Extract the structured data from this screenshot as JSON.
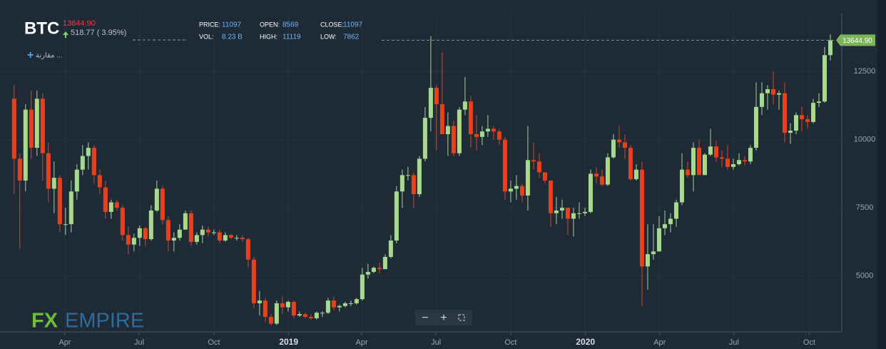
{
  "header": {
    "symbol": "BTC",
    "price": "13644.90",
    "change": "518.77 ( 3.95%)",
    "compare": "مقارنة ...",
    "stats": [
      {
        "label": "PRICE:",
        "value": "11097"
      },
      {
        "label": "VOL:",
        "value": "8.23 B"
      },
      {
        "label": "OPEN:",
        "value": "8569"
      },
      {
        "label": "HIGH:",
        "value": "11119"
      },
      {
        "label": "CLOSE:",
        "value": "11097"
      },
      {
        "label": "LOW:",
        "value": "7862"
      }
    ]
  },
  "footer": {
    "logo_fx": "FX",
    "logo_empire": "EMPIRE"
  },
  "chart_data": {
    "type": "candlestick",
    "up_color": "#a6d98a",
    "down_color": "#e8401c",
    "last_price_label": "13644.90",
    "last_price_color": "#7cb45a",
    "ylim": [
      2950,
      14650
    ],
    "yticks": [
      5000,
      7500,
      10000,
      12500
    ],
    "xlim": [
      -0.6,
      143.5
    ],
    "xticks": [
      {
        "value": 8.9,
        "label": "Apr"
      },
      {
        "value": 21.9,
        "label": "Jul"
      },
      {
        "value": 35,
        "label": "Oct"
      },
      {
        "value": 48.1,
        "label": "2019"
      },
      {
        "value": 60.9,
        "label": "Apr"
      },
      {
        "value": 73.9,
        "label": "Jul"
      },
      {
        "value": 87,
        "label": "Oct"
      },
      {
        "value": 100.1,
        "label": "2020"
      },
      {
        "value": 113.1,
        "label": "Apr"
      },
      {
        "value": 126.1,
        "label": "Jul"
      },
      {
        "value": 139.3,
        "label": "Oct"
      }
    ],
    "grid": true,
    "open": [
      11500,
      9300,
      8500,
      11100,
      9700,
      11500,
      9500,
      8200,
      8600,
      6900,
      6900,
      8100,
      8900,
      9400,
      9700,
      8700,
      8250,
      7350,
      7700,
      7500,
      6500,
      6150,
      6400,
      6750,
      6350,
      7400,
      8200,
      7050,
      6300,
      6400,
      6700,
      7300,
      6250,
      6500,
      6700,
      6600,
      6600,
      6300,
      6500,
      6400,
      6400,
      6350,
      5600,
      4000,
      4100,
      3500,
      3250,
      4000,
      3850,
      4050,
      3550,
      3600,
      3500,
      3450,
      3650,
      3650,
      4100,
      3850,
      3900,
      4000,
      4000,
      4150,
      5050,
      5150,
      5300,
      5250,
      5700,
      6300,
      8100,
      8700,
      8700,
      8000,
      9300,
      10800,
      11900,
      11300,
      10200,
      10500,
      9500,
      11100,
      11400,
      10200,
      10100,
      10300,
      10400,
      10300,
      10000,
      8100,
      8200,
      8300,
      7950,
      9250,
      9200,
      8800,
      8500,
      7300,
      7400,
      7500,
      7100,
      7300,
      7300,
      7350,
      8750,
      8650,
      8350,
      9350,
      10000,
      9900,
      9700,
      8550,
      8900,
      5350,
      5800,
      5900,
      6750,
      6900,
      7100,
      7700,
      8900,
      8700,
      9700,
      8700,
      9450,
      9750,
      9350,
      9300,
      9000,
      9100,
      9250,
      9200,
      9700,
      11200,
      11700,
      11850,
      11650,
      11700,
      10250,
      10330,
      10900,
      10750,
      10650,
      11350,
      11400,
      13100
    ],
    "high": [
      12000,
      9500,
      11300,
      11800,
      11800,
      11700,
      9900,
      9200,
      8700,
      7500,
      8500,
      9100,
      9800,
      9900,
      9800,
      8900,
      8500,
      7800,
      7800,
      7600,
      6800,
      6550,
      6850,
      6800,
      7600,
      8500,
      8300,
      7200,
      6600,
      6900,
      7400,
      7400,
      6600,
      6850,
      6800,
      6700,
      6700,
      6600,
      6550,
      6500,
      6500,
      6400,
      5700,
      4450,
      4200,
      3600,
      4100,
      4250,
      4100,
      4100,
      3700,
      3650,
      3600,
      3700,
      3700,
      4200,
      4250,
      3950,
      4050,
      4100,
      4200,
      5300,
      5450,
      5350,
      5500,
      5800,
      6500,
      8300,
      8900,
      9000,
      8800,
      9400,
      11200,
      13800,
      12000,
      13200,
      11000,
      10700,
      11200,
      12300,
      11600,
      10900,
      10500,
      10900,
      10500,
      10400,
      10100,
      8500,
      8700,
      8400,
      10500,
      9900,
      9500,
      8800,
      8500,
      7900,
      7800,
      7500,
      7500,
      7700,
      7500,
      8900,
      9000,
      8900,
      9500,
      10200,
      10500,
      10200,
      9800,
      9100,
      9200,
      6900,
      6900,
      7200,
      7400,
      7300,
      7800,
      9500,
      9200,
      9900,
      10000,
      9500,
      10400,
      9950,
      9600,
      9800,
      9300,
      9500,
      9400,
      9800,
      12100,
      12100,
      12000,
      12500,
      11800,
      12100,
      10600,
      11000,
      11200,
      10900,
      11500,
      11700,
      13400,
      13860
    ],
    "low": [
      8000,
      6000,
      8100,
      9300,
      9400,
      8500,
      7700,
      7300,
      6600,
      6500,
      6600,
      7800,
      8700,
      8900,
      8400,
      8000,
      7100,
      7100,
      7400,
      6300,
      5800,
      5900,
      6100,
      6100,
      6300,
      7350,
      6900,
      5900,
      5900,
      6300,
      6700,
      6100,
      6150,
      6200,
      6450,
      6500,
      6200,
      6250,
      6350,
      6300,
      6250,
      5300,
      3800,
      3550,
      3300,
      3200,
      3200,
      3600,
      3700,
      3450,
      3500,
      3450,
      3400,
      3400,
      3500,
      3600,
      3750,
      3700,
      3850,
      3900,
      3950,
      4100,
      4900,
      5100,
      5100,
      5250,
      5650,
      6200,
      7500,
      8500,
      7500,
      7900,
      9200,
      10300,
      9600,
      10200,
      9400,
      9400,
      9400,
      10900,
      9700,
      9600,
      9800,
      10100,
      10000,
      9800,
      7800,
      7700,
      7800,
      7700,
      7400,
      8900,
      8600,
      8400,
      6800,
      6900,
      7100,
      6500,
      6450,
      7100,
      7200,
      7300,
      8400,
      8300,
      8300,
      9300,
      9700,
      9300,
      8500,
      8500,
      3900,
      4500,
      5600,
      5900,
      6500,
      6600,
      6800,
      7600,
      8600,
      8100,
      8700,
      8700,
      9400,
      9200,
      9000,
      8900,
      8900,
      9050,
      9050,
      9100,
      9600,
      10900,
      11100,
      11300,
      11100,
      9900,
      9850,
      10200,
      10300,
      10400,
      10600,
      11200,
      11350,
      12900
    ],
    "close": [
      9300,
      8500,
      11100,
      9700,
      11500,
      9500,
      8200,
      8600,
      6900,
      6900,
      8100,
      8900,
      9400,
      9700,
      8700,
      8250,
      7350,
      7700,
      7500,
      6500,
      6150,
      6400,
      6750,
      6350,
      7400,
      8200,
      7050,
      6300,
      6400,
      6700,
      7300,
      6250,
      6500,
      6700,
      6600,
      6600,
      6300,
      6500,
      6400,
      6400,
      6350,
      5600,
      4000,
      4100,
      3500,
      3250,
      4000,
      3850,
      4050,
      3550,
      3600,
      3500,
      3450,
      3650,
      3650,
      4100,
      3850,
      3900,
      4000,
      4000,
      4150,
      5050,
      5150,
      5300,
      5250,
      5700,
      6300,
      8100,
      8700,
      8700,
      8000,
      9300,
      10800,
      11900,
      11300,
      10200,
      10500,
      9500,
      11100,
      11400,
      10200,
      10100,
      10300,
      10400,
      10300,
      10000,
      8100,
      8200,
      8300,
      7950,
      9250,
      9200,
      8800,
      8500,
      7300,
      7400,
      7500,
      7100,
      7300,
      7300,
      7350,
      8750,
      8650,
      8350,
      9350,
      10000,
      9900,
      9700,
      8550,
      8900,
      5350,
      5800,
      5900,
      6750,
      6900,
      7100,
      7700,
      8900,
      8700,
      9700,
      8700,
      9450,
      9750,
      9350,
      9300,
      9000,
      9100,
      9250,
      9200,
      9700,
      11200,
      11700,
      11850,
      11650,
      11700,
      10250,
      10330,
      10900,
      10750,
      10650,
      11350,
      11400,
      13100,
      13644.9
    ]
  }
}
